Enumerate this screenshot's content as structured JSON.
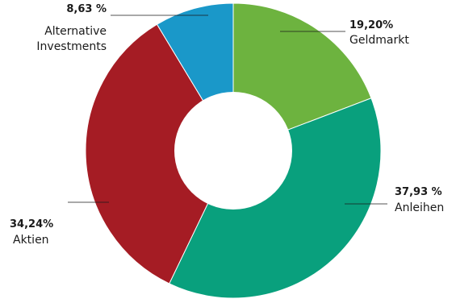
{
  "chart_data": {
    "type": "pie",
    "title": "",
    "donut": true,
    "slices": [
      {
        "label": "Geldmarkt",
        "value": 19.2,
        "value_text": "19,20%",
        "color": "#6db33f"
      },
      {
        "label": "Anleihen",
        "value": 37.93,
        "value_text": "37,93 %",
        "color": "#09a07d"
      },
      {
        "label": "Aktien",
        "value": 34.24,
        "value_text": "34,24%",
        "color": "#a51c24"
      },
      {
        "label": "Alternative Investments",
        "label_lines": [
          "Alternative",
          "Investments"
        ],
        "value": 8.63,
        "value_text": "8,63 %",
        "color": "#1a98c9"
      }
    ]
  }
}
